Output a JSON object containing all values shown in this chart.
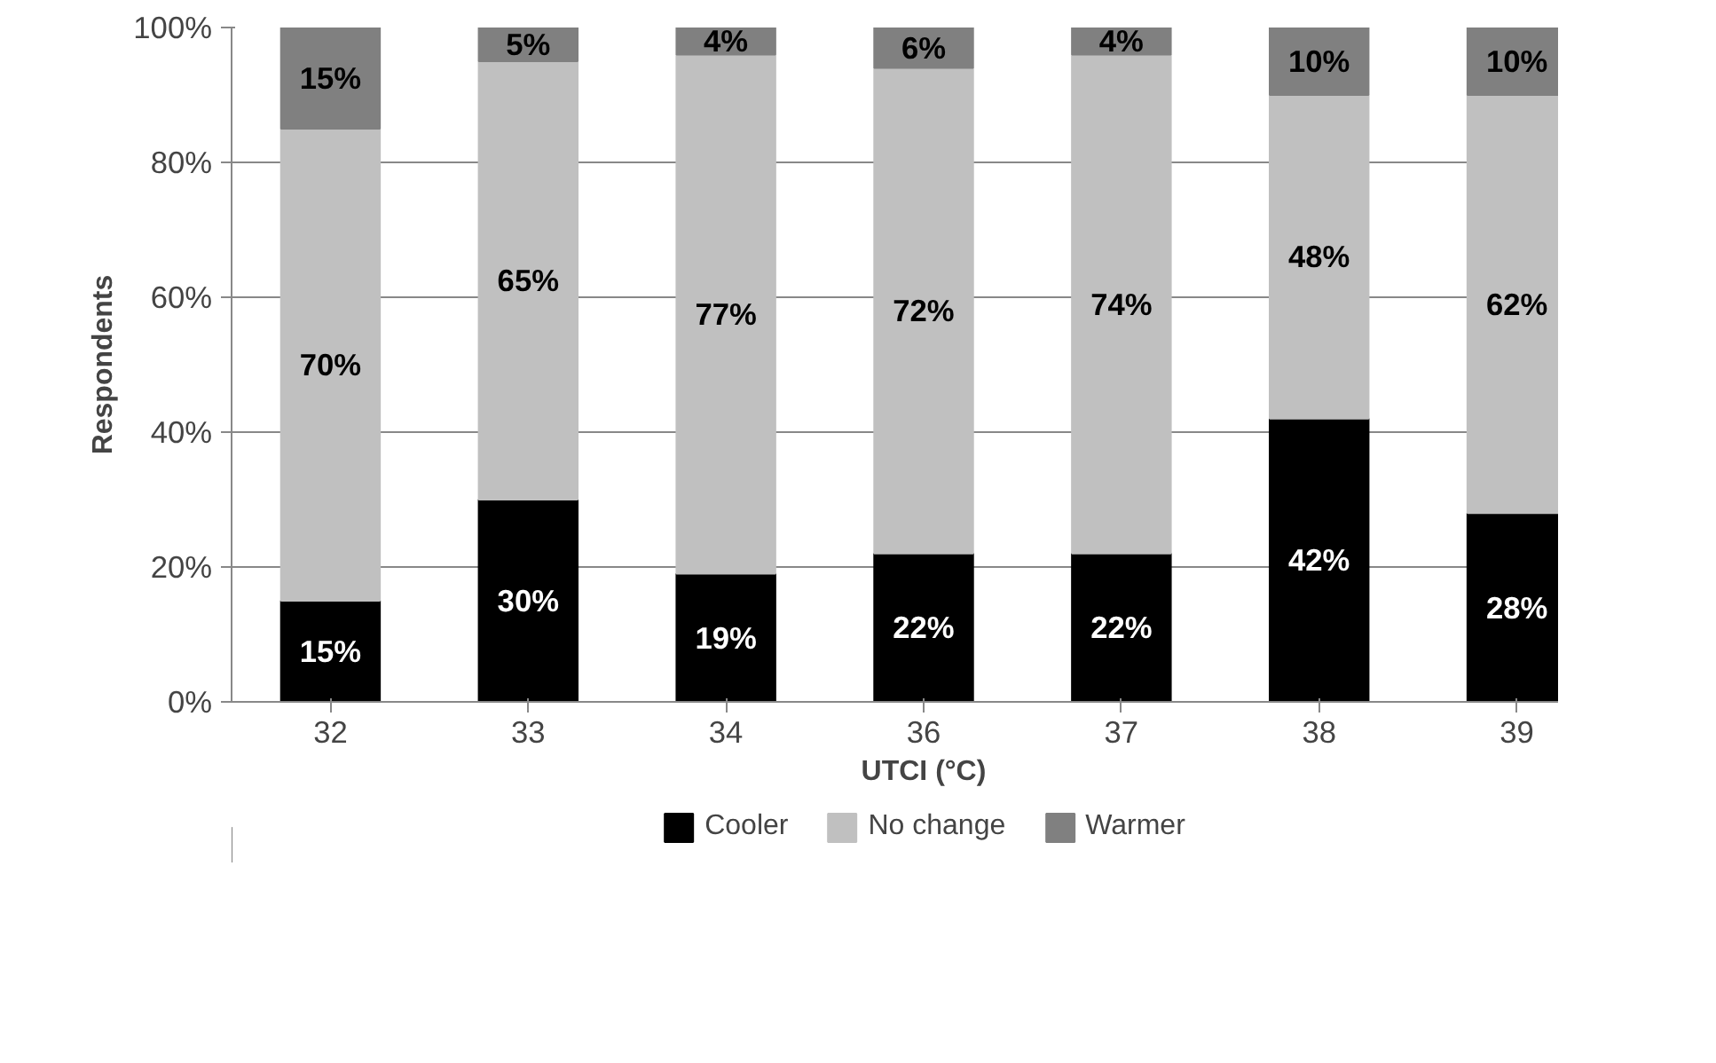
{
  "chart_data": {
    "type": "bar",
    "stacked": true,
    "xlabel": "UTCI (°C)",
    "ylabel": "Respondents",
    "categories": [
      "32",
      "33",
      "34",
      "36",
      "37",
      "38",
      "39"
    ],
    "series": [
      {
        "name": "Cooler",
        "color": "#000000",
        "values": [
          15,
          30,
          19,
          22,
          22,
          42,
          28
        ],
        "value_labels": [
          "15%",
          "30%",
          "19%",
          "22%",
          "22%",
          "42%",
          "28%"
        ]
      },
      {
        "name": "No change",
        "color": "#c0c0c0",
        "values": [
          70,
          65,
          77,
          72,
          74,
          48,
          62
        ],
        "value_labels": [
          "70%",
          "65%",
          "77%",
          "72%",
          "74%",
          "48%",
          "62%"
        ]
      },
      {
        "name": "Warmer",
        "color": "#808080",
        "values": [
          15,
          5,
          4,
          6,
          4,
          10,
          10
        ],
        "value_labels": [
          "15%",
          "5%",
          "4%",
          "6%",
          "4%",
          "10%",
          "10%"
        ]
      }
    ],
    "ylim": [
      0,
      100
    ],
    "yticks": [
      {
        "value": 0,
        "label": "0%"
      },
      {
        "value": 20,
        "label": "20%"
      },
      {
        "value": 40,
        "label": "40%"
      },
      {
        "value": 60,
        "label": "60%"
      },
      {
        "value": 80,
        "label": "80%"
      },
      {
        "value": 100,
        "label": "100%"
      }
    ],
    "grid": "y",
    "legend": "bottom"
  }
}
